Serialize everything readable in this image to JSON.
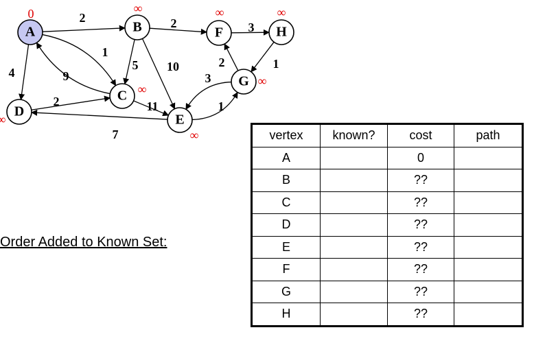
{
  "graph": {
    "nodes": [
      {
        "id": "A",
        "label": "A",
        "dist": "0",
        "dist_color": "#e00000",
        "highlighted": true
      },
      {
        "id": "B",
        "label": "B",
        "dist": "∞",
        "dist_color": "#e00000",
        "highlighted": false
      },
      {
        "id": "F",
        "label": "F",
        "dist": "∞",
        "dist_color": "#e00000",
        "highlighted": false
      },
      {
        "id": "H",
        "label": "H",
        "dist": "∞",
        "dist_color": "#e00000",
        "highlighted": false
      },
      {
        "id": "C",
        "label": "C",
        "dist": "∞",
        "dist_color": "#e00000",
        "highlighted": false
      },
      {
        "id": "G",
        "label": "G",
        "dist": "∞",
        "dist_color": "#e00000",
        "highlighted": false
      },
      {
        "id": "D",
        "label": "D",
        "dist": "∞",
        "dist_color": "#e00000",
        "highlighted": false
      },
      {
        "id": "E",
        "label": "E",
        "dist": "∞",
        "dist_color": "#e00000",
        "highlighted": false
      }
    ],
    "edges": [
      {
        "from": "A",
        "to": "B",
        "weight": "2"
      },
      {
        "from": "A",
        "to": "C",
        "weight": "1"
      },
      {
        "from": "A",
        "to": "D",
        "weight": "4"
      },
      {
        "from": "C",
        "to": "A",
        "weight": "9"
      },
      {
        "from": "B",
        "to": "F",
        "weight": "2"
      },
      {
        "from": "B",
        "to": "C",
        "weight": "5"
      },
      {
        "from": "B",
        "to": "E",
        "weight": "10"
      },
      {
        "from": "F",
        "to": "H",
        "weight": "3"
      },
      {
        "from": "H",
        "to": "G",
        "weight": "1"
      },
      {
        "from": "G",
        "to": "F",
        "weight": "2"
      },
      {
        "from": "G",
        "to": "E",
        "weight": "3"
      },
      {
        "from": "E",
        "to": "G",
        "weight": "1"
      },
      {
        "from": "D",
        "to": "C",
        "weight": "2"
      },
      {
        "from": "C",
        "to": "E",
        "weight": "11"
      },
      {
        "from": "E",
        "to": "D",
        "weight": "7"
      }
    ],
    "colors": {
      "highlight_fill": "#c6c8f2",
      "node_fill": "#ffffff",
      "stroke": "#000000"
    }
  },
  "order_label": "Order Added to Known Set:",
  "table": {
    "headers": [
      "vertex",
      "known?",
      "cost",
      "path"
    ],
    "rows": [
      [
        "A",
        "",
        "0",
        ""
      ],
      [
        "B",
        "",
        "??",
        ""
      ],
      [
        "C",
        "",
        "??",
        ""
      ],
      [
        "D",
        "",
        "??",
        ""
      ],
      [
        "E",
        "",
        "??",
        ""
      ],
      [
        "F",
        "",
        "??",
        ""
      ],
      [
        "G",
        "",
        "??",
        ""
      ],
      [
        "H",
        "",
        "??",
        ""
      ]
    ]
  }
}
